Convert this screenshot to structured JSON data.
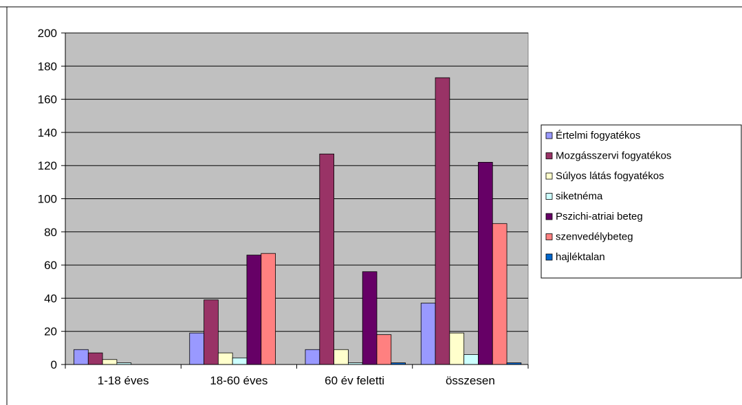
{
  "chart_data": {
    "type": "bar",
    "title": "",
    "xlabel": "",
    "ylabel": "",
    "ylim": [
      0,
      200
    ],
    "y_ticks": [
      "0",
      "20",
      "40",
      "60",
      "80",
      "100",
      "120",
      "140",
      "160",
      "180",
      "200"
    ],
    "grid": true,
    "legend_position": "right",
    "plot_background": "#c0c0c0",
    "categories": [
      "1-18 éves",
      "18-60 éves",
      "60 év feletti",
      "összesen"
    ],
    "series": [
      {
        "name": "Értelmi fogyatékos",
        "color": "#9999ff",
        "values": [
          9,
          19,
          9,
          37
        ]
      },
      {
        "name": "Mozgásszervi fogyatékos",
        "color": "#993366",
        "values": [
          7,
          39,
          127,
          173
        ]
      },
      {
        "name": "Súlyos látás fogyatékos",
        "color": "#ffffcc",
        "values": [
          3,
          7,
          9,
          19
        ]
      },
      {
        "name": "siketnéma",
        "color": "#ccffff",
        "values": [
          1,
          4,
          1,
          6
        ]
      },
      {
        "name": "Pszichi-atriai beteg",
        "color": "#660066",
        "values": [
          0,
          66,
          56,
          122
        ]
      },
      {
        "name": "szenvedélybeteg",
        "color": "#ff8080",
        "values": [
          0,
          67,
          18,
          85
        ]
      },
      {
        "name": "hajléktalan",
        "color": "#0066cc",
        "values": [
          0,
          0,
          1,
          1
        ]
      }
    ]
  }
}
